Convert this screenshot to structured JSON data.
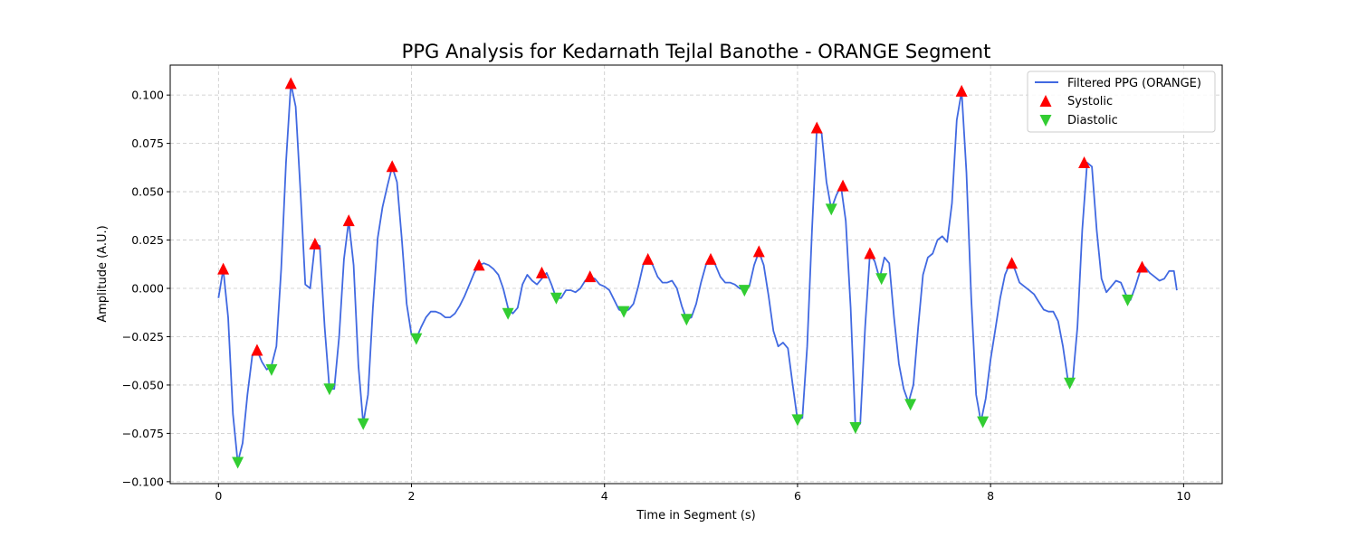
{
  "chart_data": {
    "type": "line",
    "title": "PPG Analysis for Kedarnath Tejlal Banothe - ORANGE Segment",
    "xlabel": "Time in Segment (s)",
    "ylabel": "Amplitude (A.U.)",
    "xlim": [
      -0.5,
      10.4
    ],
    "ylim": [
      -0.101,
      0.1155
    ],
    "x_ticks": [
      0,
      2,
      4,
      6,
      8,
      10
    ],
    "y_ticks": [
      -0.1,
      -0.075,
      -0.05,
      -0.025,
      0.0,
      0.025,
      0.05,
      0.075,
      0.1
    ],
    "x_tick_labels": [
      "0",
      "2",
      "4",
      "6",
      "8",
      "10"
    ],
    "y_tick_labels": [
      "−0.100",
      "−0.075",
      "−0.050",
      "−0.025",
      "0.000",
      "0.025",
      "0.050",
      "0.075",
      "0.100"
    ],
    "grid": true,
    "legend_position": "top-right",
    "series": [
      {
        "name": "Filtered PPG (ORANGE)",
        "kind": "line",
        "color": "#4169e1",
        "x": [
          0.0,
          0.05,
          0.1,
          0.15,
          0.2,
          0.25,
          0.3,
          0.35,
          0.4,
          0.45,
          0.5,
          0.55,
          0.6,
          0.65,
          0.7,
          0.75,
          0.8,
          0.85,
          0.9,
          0.95,
          1.0,
          1.05,
          1.1,
          1.15,
          1.2,
          1.25,
          1.3,
          1.35,
          1.4,
          1.45,
          1.5,
          1.55,
          1.6,
          1.65,
          1.7,
          1.75,
          1.8,
          1.85,
          1.9,
          1.95,
          2.0,
          2.05,
          2.1,
          2.15,
          2.2,
          2.25,
          2.3,
          2.35,
          2.4,
          2.45,
          2.5,
          2.55,
          2.6,
          2.65,
          2.7,
          2.75,
          2.8,
          2.85,
          2.9,
          2.95,
          3.0,
          3.05,
          3.1,
          3.15,
          3.2,
          3.25,
          3.3,
          3.35,
          3.4,
          3.45,
          3.5,
          3.55,
          3.6,
          3.65,
          3.7,
          3.75,
          3.8,
          3.85,
          3.9,
          3.95,
          4.0,
          4.05,
          4.1,
          4.15,
          4.2,
          4.25,
          4.3,
          4.35,
          4.4,
          4.45,
          4.5,
          4.55,
          4.6,
          4.65,
          4.7,
          4.75,
          4.8,
          4.85,
          4.9,
          4.95,
          5.0,
          5.05,
          5.1,
          5.15,
          5.2,
          5.25,
          5.3,
          5.35,
          5.4,
          5.45,
          5.5,
          5.55,
          5.6,
          5.65,
          5.7,
          5.75,
          5.8,
          5.85,
          5.9,
          5.95,
          6.0,
          6.05,
          6.1,
          6.15,
          6.2,
          6.25,
          6.3,
          6.35,
          6.4,
          6.45,
          6.5,
          6.55,
          6.6,
          6.65,
          6.7,
          6.75,
          6.8,
          6.85,
          6.9,
          6.95,
          7.0,
          7.05,
          7.1,
          7.15,
          7.2,
          7.25,
          7.3,
          7.35,
          7.4,
          7.45,
          7.5,
          7.55,
          7.6,
          7.65,
          7.7,
          7.75,
          7.8,
          7.85,
          7.9,
          7.95,
          8.0,
          8.05,
          8.1,
          8.15,
          8.2,
          8.25,
          8.3,
          8.35,
          8.4,
          8.45,
          8.5,
          8.55,
          8.6,
          8.65,
          8.7,
          8.75,
          8.8,
          8.85,
          8.9,
          8.95,
          9.0,
          9.05,
          9.1,
          9.15,
          9.2,
          9.25,
          9.3,
          9.35,
          9.4,
          9.45,
          9.5,
          9.55,
          9.6,
          9.65,
          9.7,
          9.75,
          9.8,
          9.85,
          9.9,
          9.93
        ],
        "y": [
          -0.005,
          0.01,
          -0.015,
          -0.065,
          -0.09,
          -0.08,
          -0.055,
          -0.035,
          -0.032,
          -0.038,
          -0.042,
          -0.04,
          -0.03,
          0.01,
          0.065,
          0.106,
          0.094,
          0.05,
          0.002,
          0.0,
          0.023,
          0.022,
          -0.02,
          -0.052,
          -0.052,
          -0.025,
          0.015,
          0.035,
          0.012,
          -0.04,
          -0.07,
          -0.055,
          -0.01,
          0.026,
          0.042,
          0.053,
          0.063,
          0.055,
          0.025,
          -0.008,
          -0.024,
          -0.026,
          -0.02,
          -0.015,
          -0.012,
          -0.012,
          -0.013,
          -0.015,
          -0.015,
          -0.013,
          -0.009,
          -0.004,
          0.002,
          0.008,
          0.012,
          0.013,
          0.012,
          0.01,
          0.007,
          0.0,
          -0.01,
          -0.013,
          -0.01,
          0.002,
          0.007,
          0.004,
          0.002,
          0.005,
          0.008,
          0.002,
          -0.005,
          -0.005,
          -0.001,
          -0.001,
          -0.002,
          0.0,
          0.004,
          0.006,
          0.005,
          0.002,
          0.001,
          -0.001,
          -0.006,
          -0.011,
          -0.012,
          -0.011,
          -0.008,
          0.001,
          0.012,
          0.015,
          0.012,
          0.006,
          0.003,
          0.003,
          0.004,
          0.0,
          -0.009,
          -0.016,
          -0.015,
          -0.008,
          0.003,
          0.012,
          0.016,
          0.012,
          0.006,
          0.003,
          0.003,
          0.002,
          0.0,
          -0.001,
          0.001,
          0.012,
          0.019,
          0.012,
          -0.004,
          -0.022,
          -0.03,
          -0.028,
          -0.031,
          -0.05,
          -0.068,
          -0.067,
          -0.03,
          0.03,
          0.083,
          0.08,
          0.055,
          0.041,
          0.048,
          0.053,
          0.035,
          -0.01,
          -0.072,
          -0.07,
          -0.02,
          0.018,
          0.014,
          0.005,
          0.016,
          0.013,
          -0.015,
          -0.039,
          -0.052,
          -0.059,
          -0.05,
          -0.02,
          0.007,
          0.016,
          0.018,
          0.025,
          0.027,
          0.024,
          0.044,
          0.087,
          0.102,
          0.06,
          -0.005,
          -0.055,
          -0.069,
          -0.057,
          -0.037,
          -0.021,
          -0.005,
          0.007,
          0.013,
          0.01,
          0.003,
          0.001,
          -0.001,
          -0.003,
          -0.007,
          -0.011,
          -0.012,
          -0.012,
          -0.017,
          -0.03,
          -0.047,
          -0.048,
          -0.02,
          0.03,
          0.065,
          0.063,
          0.03,
          0.005,
          -0.002,
          0.001,
          0.004,
          0.003,
          -0.003,
          -0.006,
          0.001,
          0.009,
          0.011,
          0.008,
          0.006,
          0.004,
          0.005,
          0.009,
          0.009,
          -0.001
        ]
      },
      {
        "name": "Systolic",
        "kind": "marker-up",
        "color": "#ff0000",
        "x": [
          0.05,
          0.4,
          0.75,
          1.0,
          1.35,
          1.8,
          2.7,
          3.35,
          3.85,
          4.45,
          5.1,
          5.6,
          6.2,
          6.47,
          6.75,
          7.7,
          8.22,
          8.97,
          9.57
        ],
        "y": [
          0.01,
          -0.032,
          0.106,
          0.023,
          0.035,
          0.063,
          0.012,
          0.008,
          0.006,
          0.015,
          0.015,
          0.019,
          0.083,
          0.053,
          0.018,
          0.102,
          0.013,
          0.065,
          0.011
        ]
      },
      {
        "name": "Diastolic",
        "kind": "marker-down",
        "color": "#32cd32",
        "x": [
          0.2,
          0.55,
          1.15,
          1.5,
          2.05,
          3.0,
          3.5,
          4.2,
          4.85,
          5.45,
          6.0,
          6.35,
          6.6,
          6.87,
          7.17,
          7.92,
          8.82,
          9.42
        ],
        "y": [
          -0.09,
          -0.042,
          -0.052,
          -0.07,
          -0.026,
          -0.013,
          -0.005,
          -0.012,
          -0.016,
          -0.001,
          -0.068,
          0.041,
          -0.072,
          0.005,
          -0.06,
          -0.069,
          -0.049,
          -0.006
        ]
      }
    ]
  }
}
